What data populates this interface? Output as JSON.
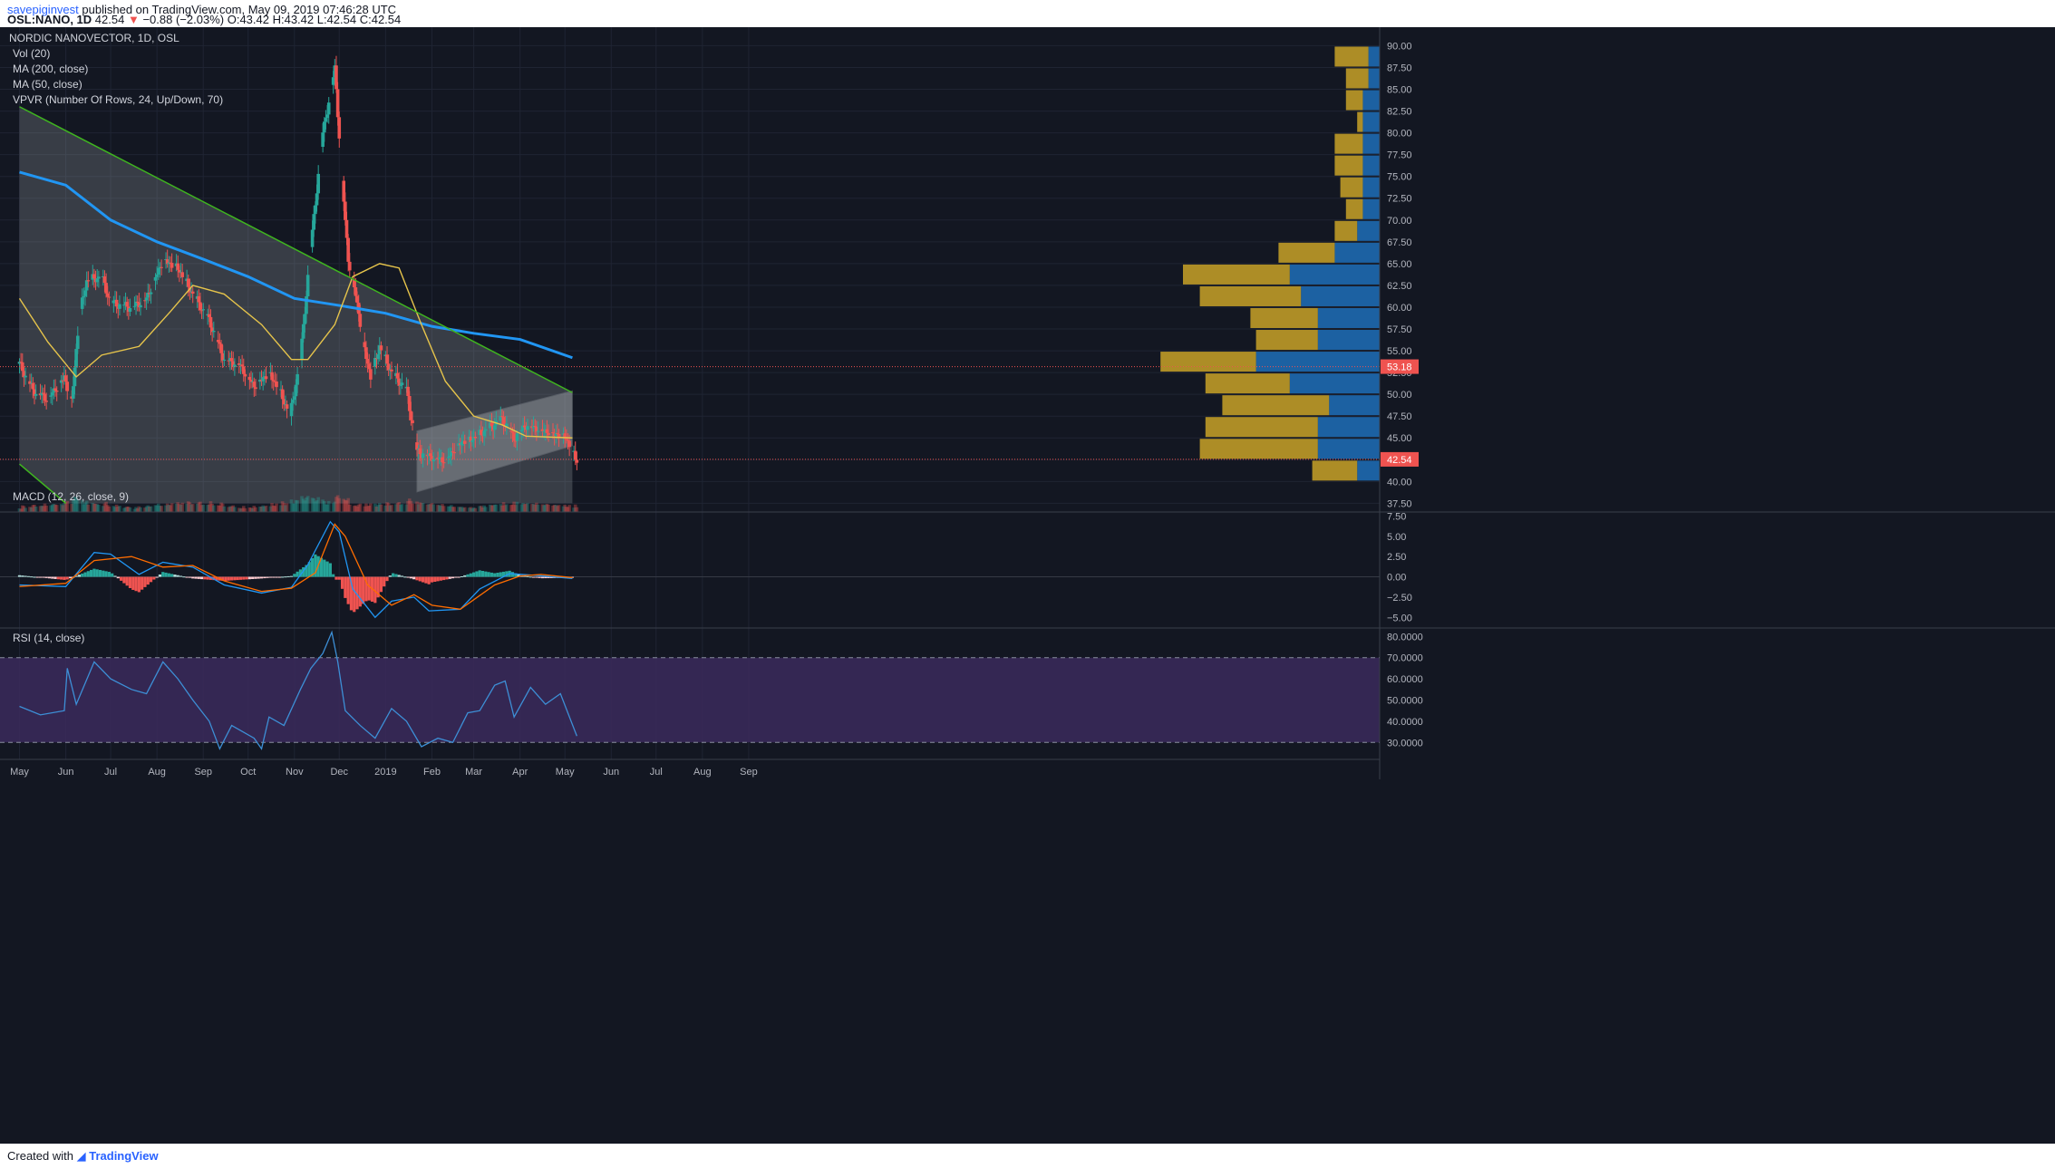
{
  "header": {
    "author": "savepiginvest",
    "published_text": "published on TradingView.com, May 09, 2019 07:46:28 UTC",
    "symbol": "OSL:NANO, 1D",
    "last": "42.54",
    "change_arrow": "▼",
    "change": "−0.88 (−2.03%)",
    "ohlc": "O:43.42 H:43.42 L:42.54 C:42.54"
  },
  "legend": {
    "title": "NORDIC NANOVECTOR, 1D, OSL",
    "vol": "Vol (20)",
    "ma200": "MA (200, close)",
    "ma50": "MA (50, close)",
    "vpvr": "VPVR (Number Of Rows, 24, Up/Down, 70)"
  },
  "macd_legend": "MACD (12, 26, close, 9)",
  "rsi_legend": "RSI (14, close)",
  "footer": {
    "created_with": "Created with",
    "brand": "TradingView"
  },
  "colors": {
    "background": "#131722",
    "up": "#26a69a",
    "down": "#ef5350",
    "ma200": "#2196f3",
    "ma50": "#e6c44b",
    "trendline": "#3fb51f",
    "channel": "#ffffff",
    "vpvr_up": "#1e6fb8",
    "vpvr_down": "#c9a227",
    "rsi_band": "#3b2a5c",
    "macd_line": "#2196f3",
    "signal_line": "#ff6d00"
  },
  "chart_data": {
    "type": "candlestick",
    "title": "NORDIC NANOVECTOR, 1D, OSL",
    "x_ticks": [
      "May",
      "Jun",
      "Jul",
      "Aug",
      "Sep",
      "Oct",
      "Nov",
      "Dec",
      "2019",
      "Feb",
      "Mar",
      "Apr",
      "May",
      "Jun",
      "Jul",
      "Aug",
      "Sep"
    ],
    "price_axis": {
      "ylim": [
        36.5,
        91.5
      ],
      "ticks": [
        "90.00",
        "87.50",
        "85.00",
        "82.50",
        "80.00",
        "77.50",
        "75.00",
        "72.50",
        "70.00",
        "67.50",
        "65.00",
        "62.50",
        "60.00",
        "57.50",
        "55.00",
        "52.50",
        "50.00",
        "47.50",
        "45.00",
        "42.50",
        "40.00",
        "37.50"
      ],
      "last_price_label": "42.54",
      "marked_level_label": "53.18"
    },
    "price_path": [
      [
        "2018-05-01",
        53.5
      ],
      [
        "2018-05-10",
        50.5
      ],
      [
        "2018-05-20",
        49.5
      ],
      [
        "2018-05-31",
        52.0
      ],
      [
        "2018-06-05",
        49.2
      ],
      [
        "2018-06-10",
        59.0
      ],
      [
        "2018-06-15",
        63.0
      ],
      [
        "2018-06-25",
        63.5
      ],
      [
        "2018-07-01",
        60.5
      ],
      [
        "2018-07-15",
        60.0
      ],
      [
        "2018-07-25",
        61.0
      ],
      [
        "2018-08-05",
        65.5
      ],
      [
        "2018-08-15",
        64.5
      ],
      [
        "2018-08-25",
        61.5
      ],
      [
        "2018-09-05",
        58.5
      ],
      [
        "2018-09-15",
        54.0
      ],
      [
        "2018-09-25",
        53.5
      ],
      [
        "2018-10-05",
        51.0
      ],
      [
        "2018-10-15",
        52.5
      ],
      [
        "2018-10-22",
        50.5
      ],
      [
        "2018-10-29",
        47.5
      ],
      [
        "2018-11-05",
        54.0
      ],
      [
        "2018-11-10",
        63.5
      ],
      [
        "2018-11-15",
        72.0
      ],
      [
        "2018-11-20",
        80.0
      ],
      [
        "2018-11-25",
        84.5
      ],
      [
        "2018-11-28",
        87.5
      ],
      [
        "2018-12-03",
        74.5
      ],
      [
        "2018-12-07",
        65.5
      ],
      [
        "2018-12-12",
        61.5
      ],
      [
        "2018-12-17",
        56.0
      ],
      [
        "2018-12-22",
        52.0
      ],
      [
        "2018-12-28",
        55.5
      ],
      [
        "2019-01-05",
        52.5
      ],
      [
        "2019-01-15",
        50.5
      ],
      [
        "2019-01-22",
        43.5
      ],
      [
        "2019-01-29",
        43.0
      ],
      [
        "2019-02-10",
        42.5
      ],
      [
        "2019-02-20",
        44.5
      ],
      [
        "2019-03-01",
        45.0
      ],
      [
        "2019-03-10",
        46.0
      ],
      [
        "2019-03-20",
        47.2
      ],
      [
        "2019-03-28",
        45.0
      ],
      [
        "2019-04-05",
        46.5
      ],
      [
        "2019-04-15",
        46.0
      ],
      [
        "2019-04-25",
        45.5
      ],
      [
        "2019-05-01",
        45.3
      ],
      [
        "2019-05-06",
        43.4
      ],
      [
        "2019-05-09",
        42.54
      ]
    ],
    "ma200_path": [
      [
        "2018-05-01",
        75.5
      ],
      [
        "2018-06-01",
        74.0
      ],
      [
        "2018-07-01",
        70.0
      ],
      [
        "2018-08-01",
        67.5
      ],
      [
        "2018-09-01",
        65.5
      ],
      [
        "2018-10-01",
        63.5
      ],
      [
        "2018-11-01",
        61.0
      ],
      [
        "2018-12-01",
        60.2
      ],
      [
        "2019-01-01",
        59.3
      ],
      [
        "2019-02-01",
        57.8
      ],
      [
        "2019-03-01",
        57.0
      ],
      [
        "2019-04-01",
        56.3
      ],
      [
        "2019-05-06",
        54.2
      ]
    ],
    "ma50_path": [
      [
        "2018-05-01",
        61.0
      ],
      [
        "2018-05-20",
        56.0
      ],
      [
        "2018-06-08",
        52.0
      ],
      [
        "2018-06-25",
        54.5
      ],
      [
        "2018-07-20",
        55.5
      ],
      [
        "2018-08-10",
        59.5
      ],
      [
        "2018-08-25",
        62.5
      ],
      [
        "2018-09-15",
        61.5
      ],
      [
        "2018-10-10",
        58.0
      ],
      [
        "2018-10-30",
        54.0
      ],
      [
        "2018-11-10",
        54.0
      ],
      [
        "2018-11-28",
        58.0
      ],
      [
        "2018-12-10",
        63.5
      ],
      [
        "2018-12-28",
        65.0
      ],
      [
        "2019-01-10",
        64.5
      ],
      [
        "2019-01-25",
        58.0
      ],
      [
        "2019-02-10",
        51.5
      ],
      [
        "2019-03-01",
        47.5
      ],
      [
        "2019-03-20",
        46.5
      ],
      [
        "2019-04-05",
        45.2
      ],
      [
        "2019-05-06",
        45.0
      ]
    ],
    "trendlines": [
      {
        "from": [
          "2018-05-01",
          83.0
        ],
        "to": [
          "2019-05-06",
          50.2
        ]
      },
      {
        "from": [
          "2018-05-01",
          42.0
        ],
        "to": [
          "2018-06-01",
          37.5
        ]
      }
    ],
    "channel": [
      [
        "2019-01-22",
        45.8
      ],
      [
        "2019-05-06",
        50.4
      ],
      [
        "2019-05-06",
        44.1
      ],
      [
        "2019-01-22",
        38.8
      ]
    ],
    "triangle": [
      [
        "2018-05-01",
        83.0
      ],
      [
        "2019-05-06",
        50.2
      ],
      [
        "2019-05-06",
        37.5
      ],
      [
        "2018-06-01",
        37.5
      ],
      [
        "2018-05-01",
        42.0
      ]
    ],
    "volume_profile": {
      "row_low_prices": [
        87.5,
        85.0,
        82.5,
        80.0,
        77.5,
        75.0,
        72.5,
        70.0,
        67.5,
        65.0,
        62.5,
        60.0,
        57.5,
        55.0,
        52.5,
        50.0,
        47.5,
        45.0,
        42.5,
        40.0
      ],
      "up_volume": [
        2,
        2,
        3,
        3,
        3,
        3,
        3,
        3,
        4,
        8,
        16,
        14,
        11,
        11,
        22,
        16,
        9,
        11,
        11,
        4
      ],
      "down_volume": [
        6,
        4,
        3,
        1,
        5,
        5,
        4,
        3,
        4,
        10,
        19,
        18,
        12,
        11,
        17,
        15,
        19,
        20,
        21,
        8
      ]
    },
    "macd": {
      "ylim": [
        -6.2,
        8.0
      ],
      "ticks": [
        "7.50",
        "5.00",
        "2.50",
        "0.00",
        "−2.50",
        "−5.00"
      ],
      "macd_path": [
        [
          "2018-05-01",
          -1.0
        ],
        [
          "2018-06-01",
          -1.2
        ],
        [
          "2018-06-20",
          3.0
        ],
        [
          "2018-07-01",
          2.8
        ],
        [
          "2018-07-20",
          0.3
        ],
        [
          "2018-08-05",
          1.8
        ],
        [
          "2018-08-25",
          1.2
        ],
        [
          "2018-09-15",
          -1.0
        ],
        [
          "2018-10-10",
          -2.0
        ],
        [
          "2018-10-30",
          -1.3
        ],
        [
          "2018-11-10",
          1.5
        ],
        [
          "2018-11-25",
          6.8
        ],
        [
          "2018-12-01",
          5.5
        ],
        [
          "2018-12-10",
          -1.5
        ],
        [
          "2018-12-25",
          -5.0
        ],
        [
          "2019-01-05",
          -3.0
        ],
        [
          "2019-01-20",
          -2.5
        ],
        [
          "2019-01-30",
          -4.2
        ],
        [
          "2019-02-20",
          -4.0
        ],
        [
          "2019-03-05",
          -1.5
        ],
        [
          "2019-03-25",
          0.4
        ],
        [
          "2019-04-10",
          0.2
        ],
        [
          "2019-05-06",
          -0.2
        ]
      ],
      "signal_path": [
        [
          "2018-05-01",
          -1.2
        ],
        [
          "2018-06-01",
          -0.8
        ],
        [
          "2018-06-20",
          2.0
        ],
        [
          "2018-07-15",
          2.5
        ],
        [
          "2018-08-05",
          1.2
        ],
        [
          "2018-08-25",
          1.4
        ],
        [
          "2018-09-15",
          -0.5
        ],
        [
          "2018-10-10",
          -1.8
        ],
        [
          "2018-10-30",
          -1.4
        ],
        [
          "2018-11-15",
          0.5
        ],
        [
          "2018-11-28",
          6.5
        ],
        [
          "2018-12-05",
          5.0
        ],
        [
          "2018-12-20",
          -1.0
        ],
        [
          "2019-01-05",
          -3.5
        ],
        [
          "2019-01-20",
          -2.2
        ],
        [
          "2019-02-01",
          -3.5
        ],
        [
          "2019-02-20",
          -4.0
        ],
        [
          "2019-03-15",
          -1.0
        ],
        [
          "2019-04-01",
          0.1
        ],
        [
          "2019-04-15",
          0.3
        ],
        [
          "2019-05-06",
          -0.1
        ]
      ]
    },
    "rsi": {
      "ylim": [
        22,
        84
      ],
      "ticks": [
        "80.0000",
        "70.0000",
        "60.0000",
        "50.0000",
        "40.0000",
        "30.0000"
      ],
      "upper_band": 70,
      "lower_band": 30,
      "rsi_path": [
        [
          "2018-05-01",
          47.0
        ],
        [
          "2018-05-15",
          43.0
        ],
        [
          "2018-05-31",
          45.0
        ],
        [
          "2018-06-02",
          65.0
        ],
        [
          "2018-06-08",
          48.0
        ],
        [
          "2018-06-20",
          68.0
        ],
        [
          "2018-07-01",
          60.0
        ],
        [
          "2018-07-15",
          55.0
        ],
        [
          "2018-07-25",
          53.0
        ],
        [
          "2018-08-05",
          68.0
        ],
        [
          "2018-08-15",
          60.0
        ],
        [
          "2018-08-25",
          50.0
        ],
        [
          "2018-09-05",
          40.0
        ],
        [
          "2018-09-12",
          27.0
        ],
        [
          "2018-09-20",
          38.0
        ],
        [
          "2018-10-05",
          32.0
        ],
        [
          "2018-10-10",
          27.0
        ],
        [
          "2018-10-15",
          42.0
        ],
        [
          "2018-10-25",
          38.0
        ],
        [
          "2018-11-05",
          55.0
        ],
        [
          "2018-11-12",
          65.0
        ],
        [
          "2018-11-20",
          72.0
        ],
        [
          "2018-11-26",
          82.0
        ],
        [
          "2018-11-30",
          68.0
        ],
        [
          "2018-12-05",
          45.0
        ],
        [
          "2018-12-15",
          38.0
        ],
        [
          "2018-12-25",
          32.0
        ],
        [
          "2019-01-05",
          46.0
        ],
        [
          "2019-01-15",
          40.0
        ],
        [
          "2019-01-25",
          28.0
        ],
        [
          "2019-02-05",
          32.0
        ],
        [
          "2019-02-15",
          30.0
        ],
        [
          "2019-02-25",
          44.0
        ],
        [
          "2019-03-05",
          45.0
        ],
        [
          "2019-03-15",
          57.0
        ],
        [
          "2019-03-22",
          59.0
        ],
        [
          "2019-03-28",
          42.0
        ],
        [
          "2019-04-08",
          56.0
        ],
        [
          "2019-04-18",
          48.0
        ],
        [
          "2019-04-28",
          53.0
        ],
        [
          "2019-05-09",
          33.0
        ]
      ]
    }
  }
}
